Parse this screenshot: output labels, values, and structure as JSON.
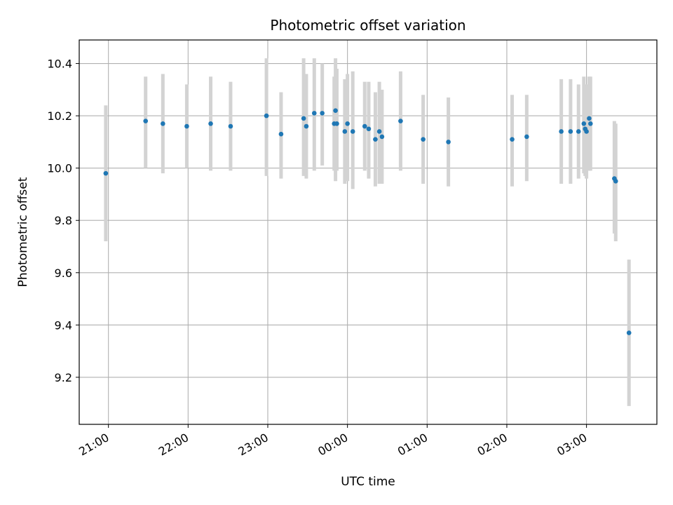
{
  "chart_data": {
    "type": "scatter",
    "title": "Photometric offset variation",
    "xlabel": "UTC time",
    "ylabel": "Photometric offset",
    "grid": true,
    "x_axis_type": "time",
    "xlim": [
      "20:38",
      "03:53"
    ],
    "ylim": [
      9.02,
      10.49
    ],
    "x_ticks": [
      "21:00",
      "22:00",
      "23:00",
      "00:00",
      "01:00",
      "02:00",
      "03:00"
    ],
    "y_ticks": [
      "9.2",
      "9.4",
      "9.6",
      "9.8",
      "10.0",
      "10.2",
      "10.4"
    ],
    "colors": {
      "points": "#1f77b4",
      "errorbars": "#d3d3d3",
      "grid": "#b0b0b0"
    },
    "points": [
      {
        "x": "20:58",
        "y": 9.98,
        "yerr_low": 9.72,
        "yerr_high": 10.24
      },
      {
        "x": "21:28",
        "y": 10.18,
        "yerr_low": 10.0,
        "yerr_high": 10.35
      },
      {
        "x": "21:41",
        "y": 10.17,
        "yerr_low": 9.98,
        "yerr_high": 10.36
      },
      {
        "x": "21:59",
        "y": 10.16,
        "yerr_low": 10.0,
        "yerr_high": 10.32
      },
      {
        "x": "22:17",
        "y": 10.17,
        "yerr_low": 9.99,
        "yerr_high": 10.35
      },
      {
        "x": "22:32",
        "y": 10.16,
        "yerr_low": 9.99,
        "yerr_high": 10.33
      },
      {
        "x": "22:59",
        "y": 10.2,
        "yerr_low": 9.97,
        "yerr_high": 10.42
      },
      {
        "x": "23:10",
        "y": 10.13,
        "yerr_low": 9.96,
        "yerr_high": 10.29
      },
      {
        "x": "23:27",
        "y": 10.19,
        "yerr_low": 9.97,
        "yerr_high": 10.42
      },
      {
        "x": "23:29",
        "y": 10.16,
        "yerr_low": 9.96,
        "yerr_high": 10.36
      },
      {
        "x": "23:35",
        "y": 10.21,
        "yerr_low": 9.99,
        "yerr_high": 10.42
      },
      {
        "x": "23:41",
        "y": 10.21,
        "yerr_low": 10.01,
        "yerr_high": 10.4
      },
      {
        "x": "23:50",
        "y": 10.17,
        "yerr_low": 9.99,
        "yerr_high": 10.35
      },
      {
        "x": "23:51",
        "y": 10.22,
        "yerr_low": 9.95,
        "yerr_high": 10.42
      },
      {
        "x": "23:52",
        "y": 10.17,
        "yerr_low": 9.99,
        "yerr_high": 10.38
      },
      {
        "x": "23:58",
        "y": 10.14,
        "yerr_low": 9.94,
        "yerr_high": 10.34
      },
      {
        "x": "00:00",
        "y": 10.17,
        "yerr_low": 9.95,
        "yerr_high": 10.36
      },
      {
        "x": "00:04",
        "y": 10.14,
        "yerr_low": 9.92,
        "yerr_high": 10.37
      },
      {
        "x": "00:13",
        "y": 10.16,
        "yerr_low": 9.99,
        "yerr_high": 10.33
      },
      {
        "x": "00:16",
        "y": 10.15,
        "yerr_low": 9.96,
        "yerr_high": 10.33
      },
      {
        "x": "00:21",
        "y": 10.11,
        "yerr_low": 9.93,
        "yerr_high": 10.29
      },
      {
        "x": "00:24",
        "y": 10.14,
        "yerr_low": 9.94,
        "yerr_high": 10.33
      },
      {
        "x": "00:26",
        "y": 10.12,
        "yerr_low": 9.94,
        "yerr_high": 10.3
      },
      {
        "x": "00:40",
        "y": 10.18,
        "yerr_low": 9.99,
        "yerr_high": 10.37
      },
      {
        "x": "00:57",
        "y": 10.11,
        "yerr_low": 9.94,
        "yerr_high": 10.28
      },
      {
        "x": "01:16",
        "y": 10.1,
        "yerr_low": 9.93,
        "yerr_high": 10.27
      },
      {
        "x": "02:04",
        "y": 10.11,
        "yerr_low": 9.93,
        "yerr_high": 10.28
      },
      {
        "x": "02:15",
        "y": 10.12,
        "yerr_low": 9.95,
        "yerr_high": 10.28
      },
      {
        "x": "02:41",
        "y": 10.14,
        "yerr_low": 9.94,
        "yerr_high": 10.34
      },
      {
        "x": "02:48",
        "y": 10.14,
        "yerr_low": 9.94,
        "yerr_high": 10.34
      },
      {
        "x": "02:54",
        "y": 10.14,
        "yerr_low": 9.96,
        "yerr_high": 10.32
      },
      {
        "x": "02:58",
        "y": 10.17,
        "yerr_low": 9.98,
        "yerr_high": 10.35
      },
      {
        "x": "02:59",
        "y": 10.15,
        "yerr_low": 9.97,
        "yerr_high": 10.32
      },
      {
        "x": "03:00",
        "y": 10.14,
        "yerr_low": 9.96,
        "yerr_high": 10.32
      },
      {
        "x": "03:02",
        "y": 10.19,
        "yerr_low": 9.99,
        "yerr_high": 10.35
      },
      {
        "x": "03:03",
        "y": 10.17,
        "yerr_low": 9.99,
        "yerr_high": 10.35
      },
      {
        "x": "03:21",
        "y": 9.96,
        "yerr_low": 9.75,
        "yerr_high": 10.18
      },
      {
        "x": "03:22",
        "y": 9.95,
        "yerr_low": 9.72,
        "yerr_high": 10.17
      },
      {
        "x": "03:32",
        "y": 9.37,
        "yerr_low": 9.09,
        "yerr_high": 9.65
      }
    ]
  }
}
